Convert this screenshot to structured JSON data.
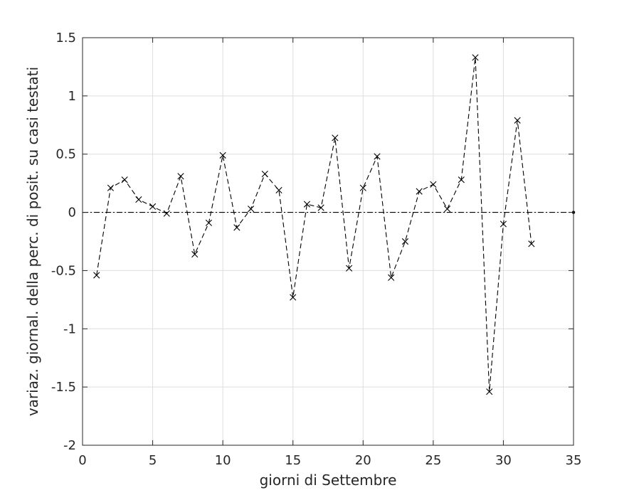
{
  "chart_data": {
    "type": "line",
    "title": "",
    "xlabel": "giorni di Settembre",
    "ylabel": "variaz. giornal. della perc. di posit. su casi testati",
    "xlim": [
      0,
      35
    ],
    "ylim": [
      -2,
      1.5
    ],
    "xticks": [
      0,
      5,
      10,
      15,
      20,
      25,
      30,
      35
    ],
    "yticks": [
      -2,
      -1.5,
      -1,
      -0.5,
      0,
      0.5,
      1,
      1.5
    ],
    "xtick_labels": [
      "0",
      "5",
      "10",
      "15",
      "20",
      "25",
      "30",
      "35"
    ],
    "ytick_labels": [
      "-2",
      "-1.5",
      "-1",
      "-0.5",
      "0",
      "0.5",
      "1",
      "1.5"
    ],
    "grid": true,
    "series": [
      {
        "line_style": "dashed",
        "marker": "x",
        "color": "#000000",
        "x": [
          1,
          2,
          3,
          4,
          5,
          6,
          7,
          8,
          9,
          10,
          11,
          12,
          13,
          14,
          15,
          16,
          17,
          18,
          19,
          20,
          21,
          22,
          23,
          24,
          25,
          26,
          27,
          28,
          29,
          30,
          31,
          32
        ],
        "y": [
          -0.54,
          0.21,
          0.28,
          0.11,
          0.05,
          -0.01,
          0.31,
          -0.36,
          -0.09,
          0.49,
          -0.13,
          0.03,
          0.33,
          0.19,
          -0.73,
          0.07,
          0.04,
          0.64,
          -0.48,
          0.21,
          0.48,
          -0.56,
          -0.25,
          0.18,
          0.24,
          0.03,
          0.28,
          1.33,
          -1.54,
          -0.1,
          0.79,
          -0.27
        ]
      }
    ],
    "reference_lines": [
      {
        "y": 0,
        "line_style": "dash-dot",
        "color": "#000000"
      }
    ]
  }
}
